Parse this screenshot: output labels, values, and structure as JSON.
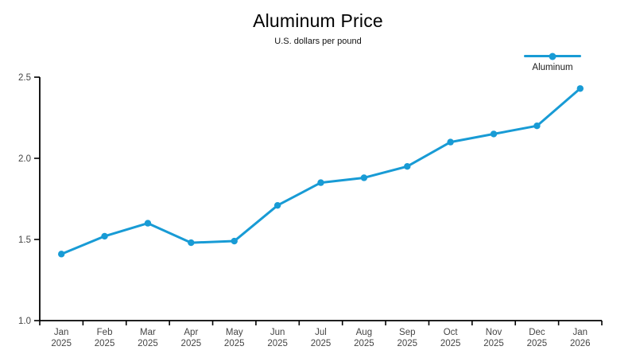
{
  "chart": {
    "title": "Aluminum Price",
    "subtitle": "U.S. dollars per pound",
    "legend": {
      "label": "Aluminum"
    },
    "colors": {
      "line": "#189bd5",
      "axis": "#000000",
      "tick_label": "#454545",
      "background": "#ffffff"
    }
  },
  "chart_data": {
    "type": "line",
    "title": "Aluminum Price",
    "subtitle": "U.S. dollars per pound",
    "xlabel": "",
    "ylabel": "U.S. dollars per pound",
    "legend_entries": [
      "Aluminum"
    ],
    "legend_position": "top-right",
    "grid": false,
    "marker": "circle",
    "line_color": "#189bd5",
    "categories": [
      "Jan 2025",
      "Feb 2025",
      "Mar 2025",
      "Apr 2025",
      "May 2025",
      "Jun 2025",
      "Jul 2025",
      "Aug 2025",
      "Sep 2025",
      "Oct 2025",
      "Nov 2025",
      "Dec 2025",
      "Jan 2026"
    ],
    "series": [
      {
        "name": "Aluminum",
        "values": [
          1.41,
          1.52,
          1.6,
          1.48,
          1.49,
          1.71,
          1.85,
          1.88,
          1.95,
          2.1,
          2.15,
          2.2,
          2.43
        ]
      }
    ],
    "ylim": [
      1.0,
      2.5
    ],
    "yticks": [
      1.0,
      1.5,
      2.0,
      2.5
    ]
  }
}
